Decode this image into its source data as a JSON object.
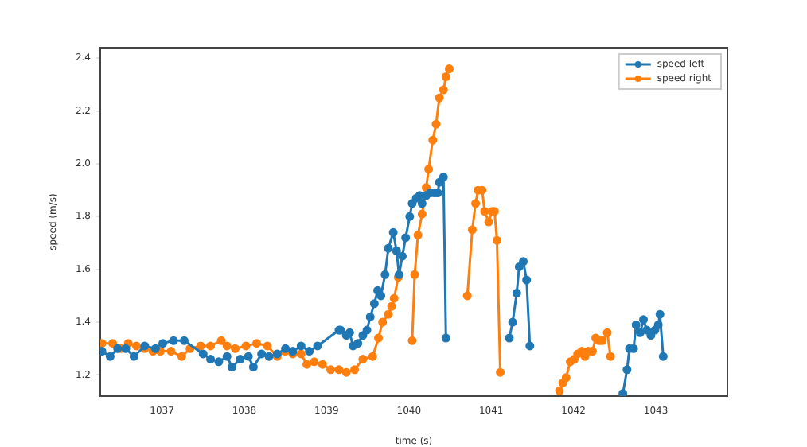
{
  "chart_data": {
    "type": "line",
    "xlabel": "time (s)",
    "ylabel": "speed (m/s)",
    "xlim": [
      1036.25,
      1043.87
    ],
    "xticks": [
      1037,
      1038,
      1039,
      1040,
      1041,
      1042,
      1043
    ],
    "ylim": [
      1.12,
      2.44
    ],
    "yticks": [
      1.2,
      1.4,
      1.6,
      1.8,
      {
        "value": 2,
        "label": "2.0"
      },
      2.2,
      2.4
    ],
    "grid": false,
    "legend": "top right",
    "marker": "circle",
    "line_style": "solid",
    "series": [
      {
        "name": "speed left",
        "color": "#1f77b4",
        "x": [
          1036.27,
          1036.37,
          1036.46,
          1036.56,
          1036.66,
          1036.79,
          1036.92,
          1037.01,
          1037.14,
          1037.27,
          1037.5,
          1037.59,
          1037.69,
          1037.79,
          1037.85,
          1037.95,
          1038.05,
          1038.11,
          1038.21,
          1038.3,
          1038.4,
          1038.5,
          1038.59,
          1038.69,
          1038.79,
          1038.89,
          1039.15,
          1039.17,
          1039.24,
          1039.28,
          1039.32,
          1039.38,
          1039.44,
          1039.49,
          1039.53,
          1039.58,
          1039.62,
          1039.66,
          1039.71,
          1039.75,
          1039.81,
          1039.85,
          1039.88,
          1039.92,
          1039.96,
          1040.01,
          1040.04,
          1040.09,
          1040.13,
          1040.16,
          1040.21,
          1040.26,
          1040.31,
          1040.35,
          1040.37,
          1040.42,
          1040.45,
          1040.8,
          1041.22,
          1041.26,
          1041.31,
          1041.34,
          1041.39,
          1041.43,
          1041.47,
          1042.0,
          1042.6,
          1042.65,
          1042.68,
          1042.73,
          1042.76,
          1042.81,
          1042.85,
          1042.89,
          1042.94,
          1042.99,
          1043.03,
          1043.05,
          1043.09
        ],
        "values": [
          1.29,
          1.27,
          1.3,
          1.3,
          1.27,
          1.31,
          1.3,
          1.32,
          1.33,
          1.33,
          1.28,
          1.26,
          1.25,
          1.27,
          1.23,
          1.26,
          1.27,
          1.23,
          1.28,
          1.27,
          1.28,
          1.3,
          1.29,
          1.31,
          1.29,
          1.31,
          1.37,
          1.37,
          1.35,
          1.36,
          1.31,
          1.32,
          1.35,
          1.37,
          1.42,
          1.47,
          1.52,
          1.5,
          1.58,
          1.68,
          1.74,
          1.67,
          1.58,
          1.65,
          1.72,
          1.8,
          1.85,
          1.87,
          1.88,
          1.85,
          1.88,
          1.89,
          1.89,
          1.89,
          1.93,
          1.95,
          1.34,
          null,
          1.34,
          1.4,
          1.51,
          1.61,
          1.63,
          1.56,
          1.31,
          null,
          1.13,
          1.22,
          1.3,
          1.3,
          1.39,
          1.36,
          1.41,
          1.37,
          1.35,
          1.37,
          1.39,
          1.43,
          1.27
        ]
      },
      {
        "name": "speed right",
        "color": "#ff7f0e",
        "x": [
          1036.27,
          1036.4,
          1036.5,
          1036.59,
          1036.69,
          1036.79,
          1036.89,
          1036.98,
          1037.11,
          1037.24,
          1037.34,
          1037.47,
          1037.59,
          1037.72,
          1037.79,
          1037.89,
          1038.02,
          1038.15,
          1038.28,
          1038.4,
          1038.5,
          1038.59,
          1038.69,
          1038.76,
          1038.85,
          1038.95,
          1039.05,
          1039.15,
          1039.24,
          1039.34,
          1039.44,
          1039.56,
          1039.63,
          1039.68,
          1039.75,
          1039.79,
          1039.82,
          1039.87,
          1039.95,
          1040.04,
          1040.07,
          1040.11,
          1040.16,
          1040.21,
          1040.24,
          1040.29,
          1040.33,
          1040.37,
          1040.42,
          1040.45,
          1040.49,
          1040.6,
          1040.71,
          1040.77,
          1040.81,
          1040.84,
          1040.89,
          1040.92,
          1040.97,
          1041.01,
          1041.04,
          1041.07,
          1041.11,
          1041.5,
          1041.83,
          1041.87,
          1041.91,
          1041.96,
          1042.01,
          1042.05,
          1042.1,
          1042.14,
          1042.18,
          1042.23,
          1042.27,
          1042.31,
          1042.35,
          1042.41,
          1042.45
        ],
        "values": [
          1.32,
          1.32,
          1.3,
          1.32,
          1.31,
          1.3,
          1.29,
          1.29,
          1.29,
          1.27,
          1.3,
          1.31,
          1.31,
          1.33,
          1.31,
          1.3,
          1.31,
          1.32,
          1.31,
          1.27,
          1.29,
          1.28,
          1.28,
          1.24,
          1.25,
          1.24,
          1.22,
          1.22,
          1.21,
          1.22,
          1.26,
          1.27,
          1.34,
          1.4,
          1.43,
          1.46,
          1.49,
          1.57,
          null,
          1.33,
          1.58,
          1.73,
          1.81,
          1.91,
          1.98,
          2.09,
          2.15,
          2.25,
          2.28,
          2.33,
          2.36,
          null,
          1.5,
          1.75,
          1.85,
          1.9,
          1.9,
          1.82,
          1.78,
          1.82,
          1.82,
          1.71,
          1.21,
          null,
          1.14,
          1.17,
          1.19,
          1.25,
          1.26,
          1.28,
          1.29,
          1.27,
          1.29,
          1.29,
          1.34,
          1.33,
          1.33,
          1.36,
          1.27
        ]
      }
    ]
  }
}
